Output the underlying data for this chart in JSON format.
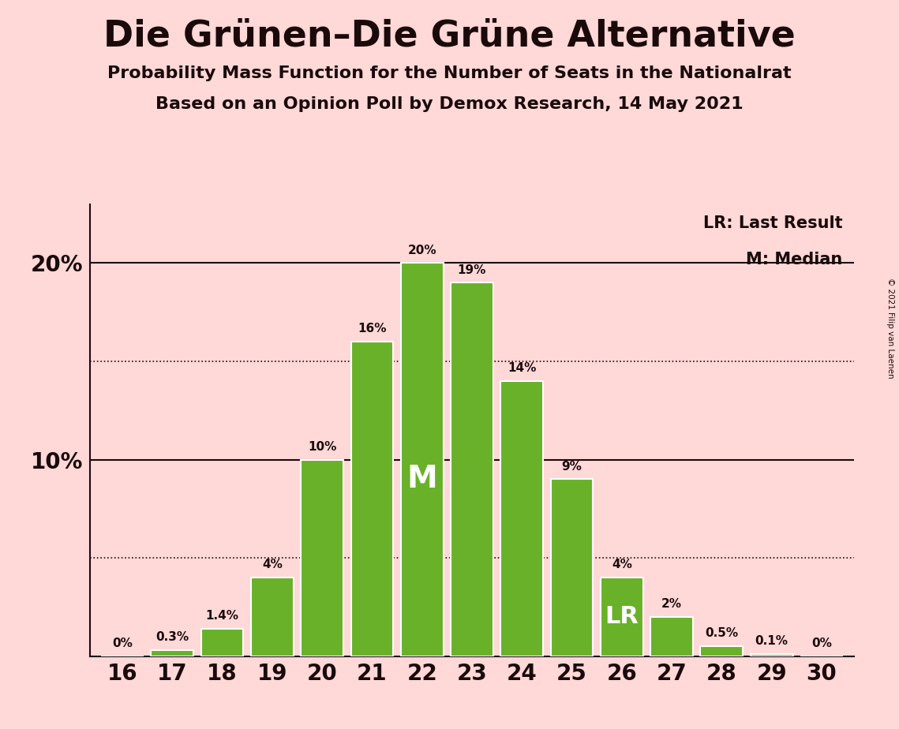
{
  "title": "Die Grünen–Die Grüne Alternative",
  "subtitle1": "Probability Mass Function for the Number of Seats in the Nationalrat",
  "subtitle2": "Based on an Opinion Poll by Demox Research, 14 May 2021",
  "copyright": "© 2021 Filip van Laenen",
  "seats": [
    16,
    17,
    18,
    19,
    20,
    21,
    22,
    23,
    24,
    25,
    26,
    27,
    28,
    29,
    30
  ],
  "probabilities": [
    0.0,
    0.3,
    1.4,
    4.0,
    10.0,
    16.0,
    20.0,
    19.0,
    14.0,
    9.0,
    4.0,
    2.0,
    0.5,
    0.1,
    0.0
  ],
  "prob_labels": [
    "0%",
    "0.3%",
    "1.4%",
    "4%",
    "10%",
    "16%",
    "20%",
    "19%",
    "14%",
    "9%",
    "4%",
    "2%",
    "0.5%",
    "0.1%",
    "0%"
  ],
  "bar_color": "#6ab12a",
  "bar_edge_color": "#ffffff",
  "background_color": "#ffd8d8",
  "text_color": "#1a0a0a",
  "median_seat": 22,
  "lr_seat": 26,
  "solid_lines": [
    10.0,
    20.0
  ],
  "dotted_lines": [
    15.0,
    5.0
  ],
  "legend_lr": "LR: Last Result",
  "legend_m": "M: Median",
  "ylim": [
    0,
    23
  ],
  "xlim": [
    15.35,
    30.65
  ]
}
